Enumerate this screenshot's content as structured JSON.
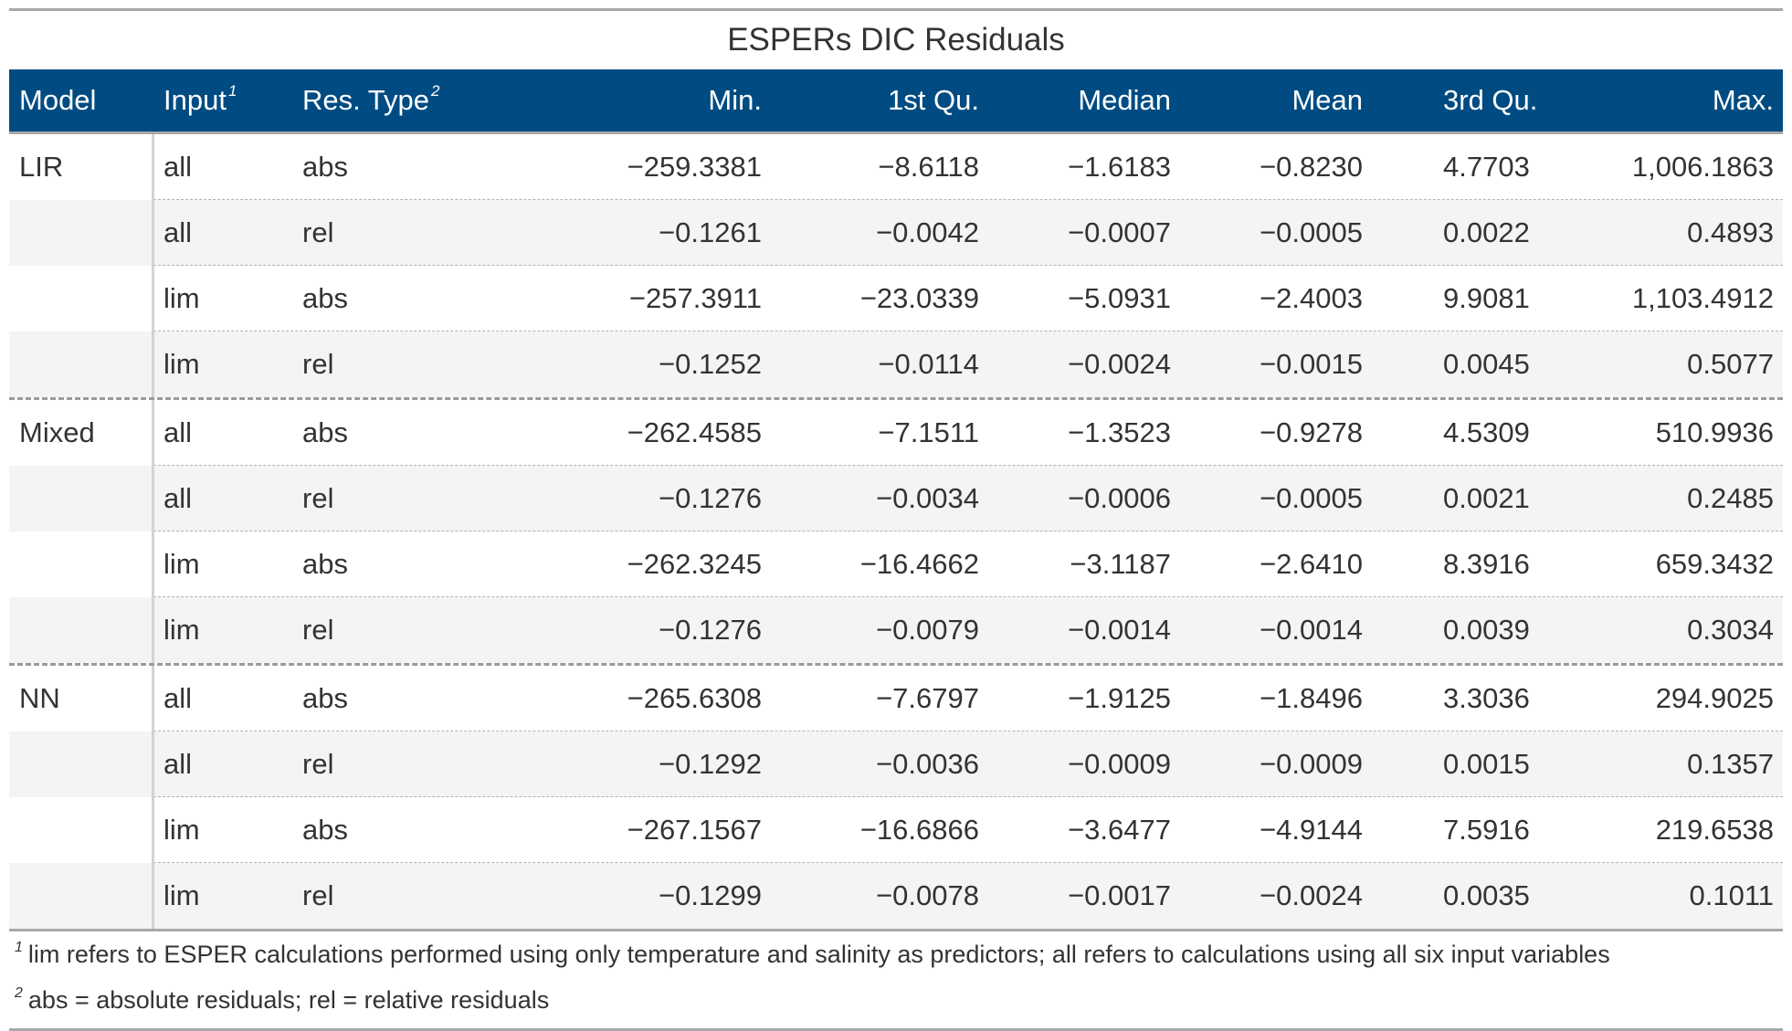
{
  "table": {
    "title": "ESPERs DIC Residuals",
    "headers": {
      "model": "Model",
      "input": "Input",
      "input_note": "1",
      "res_type": "Res. Type",
      "res_type_note": "2",
      "min": "Min.",
      "q1": "1st Qu.",
      "median": "Median",
      "mean": "Mean",
      "q3": "3rd Qu.",
      "max": "Max."
    },
    "groups": [
      {
        "model": "LIR",
        "rows": [
          {
            "input": "all",
            "res_type": "abs",
            "min": "−259.3381",
            "q1": "−8.6118",
            "median": "−1.6183",
            "mean": "−0.8230",
            "q3": "4.7703",
            "max": "1,006.1863"
          },
          {
            "input": "all",
            "res_type": "rel",
            "min": "−0.1261",
            "q1": "−0.0042",
            "median": "−0.0007",
            "mean": "−0.0005",
            "q3": "0.0022",
            "max": "0.4893"
          },
          {
            "input": "lim",
            "res_type": "abs",
            "min": "−257.3911",
            "q1": "−23.0339",
            "median": "−5.0931",
            "mean": "−2.4003",
            "q3": "9.9081",
            "max": "1,103.4912"
          },
          {
            "input": "lim",
            "res_type": "rel",
            "min": "−0.1252",
            "q1": "−0.0114",
            "median": "−0.0024",
            "mean": "−0.0015",
            "q3": "0.0045",
            "max": "0.5077"
          }
        ]
      },
      {
        "model": "Mixed",
        "rows": [
          {
            "input": "all",
            "res_type": "abs",
            "min": "−262.4585",
            "q1": "−7.1511",
            "median": "−1.3523",
            "mean": "−0.9278",
            "q3": "4.5309",
            "max": "510.9936"
          },
          {
            "input": "all",
            "res_type": "rel",
            "min": "−0.1276",
            "q1": "−0.0034",
            "median": "−0.0006",
            "mean": "−0.0005",
            "q3": "0.0021",
            "max": "0.2485"
          },
          {
            "input": "lim",
            "res_type": "abs",
            "min": "−262.3245",
            "q1": "−16.4662",
            "median": "−3.1187",
            "mean": "−2.6410",
            "q3": "8.3916",
            "max": "659.3432"
          },
          {
            "input": "lim",
            "res_type": "rel",
            "min": "−0.1276",
            "q1": "−0.0079",
            "median": "−0.0014",
            "mean": "−0.0014",
            "q3": "0.0039",
            "max": "0.3034"
          }
        ]
      },
      {
        "model": "NN",
        "rows": [
          {
            "input": "all",
            "res_type": "abs",
            "min": "−265.6308",
            "q1": "−7.6797",
            "median": "−1.9125",
            "mean": "−1.8496",
            "q3": "3.3036",
            "max": "294.9025"
          },
          {
            "input": "all",
            "res_type": "rel",
            "min": "−0.1292",
            "q1": "−0.0036",
            "median": "−0.0009",
            "mean": "−0.0009",
            "q3": "0.0015",
            "max": "0.1357"
          },
          {
            "input": "lim",
            "res_type": "abs",
            "min": "−267.1567",
            "q1": "−16.6866",
            "median": "−3.6477",
            "mean": "−4.9144",
            "q3": "7.5916",
            "max": "219.6538"
          },
          {
            "input": "lim",
            "res_type": "rel",
            "min": "−0.1299",
            "q1": "−0.0078",
            "median": "−0.0017",
            "mean": "−0.0024",
            "q3": "0.0035",
            "max": "0.1011"
          }
        ]
      }
    ],
    "footnotes": [
      {
        "mark": "1",
        "text": "lim refers to ESPER calculations performed using only temperature and salinity as predictors; all refers to calculations using all six input variables"
      },
      {
        "mark": "2",
        "text": "abs = absolute residuals; rel = relative residuals"
      }
    ],
    "colors": {
      "header_bg": "#004c82",
      "header_text": "#ffffff",
      "stripe": "#f4f4f4",
      "rule": "#a8a8a8"
    }
  }
}
